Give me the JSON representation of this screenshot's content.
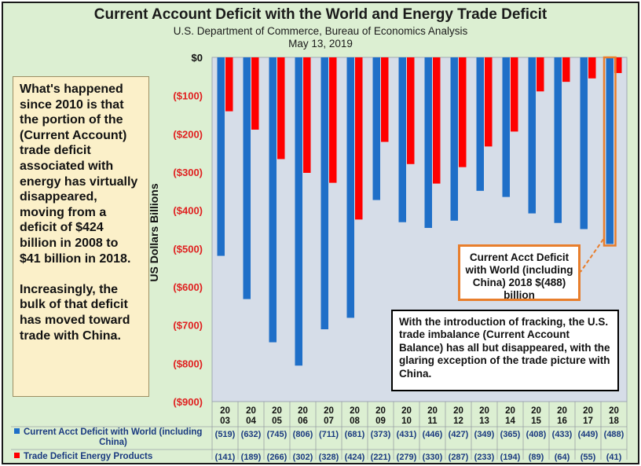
{
  "title": "Current Account Deficit with the World and Energy Trade Deficit",
  "subtitle": "U.S. Department of Commerce, Bureau of Economics Analysis",
  "date": "May 13, 2019",
  "left_note": {
    "p1": "What's happened since 2010 is that the portion of the (Current Account) trade deficit associated with energy has virtually disappeared, moving from a deficit of $424 billion in 2008 to $41 billion in 2018.",
    "p2": "Increasingly, the bulk of that deficit has moved toward trade with China."
  },
  "callout_2018": "Current Acct Deficit with World (including China) 2018 $(488) billion",
  "callout_fracking": "With the introduction of fracking, the U.S. trade imbalance (Current Account Balance) has all but disappeared, with the glaring exception of the trade picture with China.",
  "colors": {
    "current_account": "#1f6fc8",
    "energy": "#ff0000",
    "plot_bg": "#d6dde8",
    "frame_bg": "#dcefd2",
    "callout_border": "#e87e2c"
  },
  "chart_data": {
    "type": "bar",
    "ylabel": "US Dollars Billions",
    "ylim": [
      -900,
      0
    ],
    "yticks": [
      0,
      -100,
      -200,
      -300,
      -400,
      -500,
      -600,
      -700,
      -800,
      -900
    ],
    "ytick_labels": [
      "$0",
      "($100)",
      "($200)",
      "($300)",
      "($400)",
      "($500)",
      "($600)",
      "($700)",
      "($800)",
      "($900)"
    ],
    "categories": [
      "2003",
      "2004",
      "2005",
      "2006",
      "2007",
      "2008",
      "2009",
      "2010",
      "2011",
      "2012",
      "2013",
      "2014",
      "2015",
      "2016",
      "2017",
      "2018"
    ],
    "category_labels_top": [
      "20",
      "20",
      "20",
      "20",
      "20",
      "20",
      "20",
      "20",
      "20",
      "20",
      "20",
      "20",
      "20",
      "20",
      "20",
      "20"
    ],
    "category_labels_bottom": [
      "03",
      "04",
      "05",
      "06",
      "07",
      "08",
      "09",
      "10",
      "11",
      "12",
      "13",
      "14",
      "15",
      "16",
      "17",
      "18"
    ],
    "grid": false,
    "legend": "bottom-left, as data table",
    "series": [
      {
        "name": "Current Acct Deficit with World (including China)",
        "legend_line1": "Current Acct Deficit with World (including",
        "legend_line2": "China)",
        "color": "#1f6fc8",
        "values": [
          -519,
          -632,
          -745,
          -806,
          -711,
          -681,
          -373,
          -431,
          -446,
          -427,
          -349,
          -365,
          -408,
          -433,
          -449,
          -488
        ],
        "table_labels": [
          "(519)",
          "(632)",
          "(745)",
          "(806)",
          "(711)",
          "(681)",
          "(373)",
          "(431)",
          "(446)",
          "(427)",
          "(349)",
          "(365)",
          "(408)",
          "(433)",
          "(449)",
          "(488)"
        ]
      },
      {
        "name": "Trade Deficit Energy Products",
        "color": "#ff0000",
        "values": [
          -141,
          -189,
          -266,
          -302,
          -328,
          -424,
          -221,
          -279,
          -330,
          -287,
          -233,
          -194,
          -89,
          -64,
          -55,
          -41
        ],
        "table_labels": [
          "(141)",
          "(189)",
          "(266)",
          "(302)",
          "(328)",
          "(424)",
          "(221)",
          "(279)",
          "(330)",
          "(287)",
          "(233)",
          "(194)",
          "(89)",
          "(64)",
          "(55)",
          "(41)"
        ]
      }
    ]
  }
}
